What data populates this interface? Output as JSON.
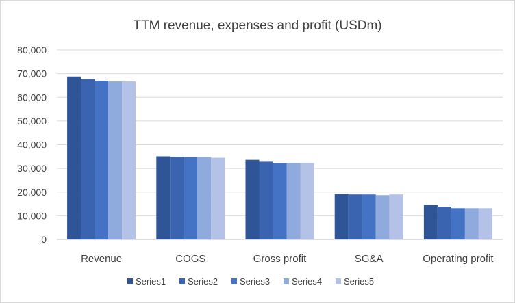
{
  "chart_data": {
    "type": "bar",
    "title": "TTM revenue, expenses and profit (USDm)",
    "xlabel": "",
    "ylabel": "",
    "categories": [
      "Revenue",
      "COGS",
      "Gross profit",
      "SG&A",
      "Operating profit"
    ],
    "series": [
      {
        "name": "Series1",
        "color": "#2f5597",
        "values": [
          68800,
          35100,
          33600,
          19200,
          14600
        ]
      },
      {
        "name": "Series2",
        "color": "#3a64b0",
        "values": [
          67600,
          34900,
          32800,
          19000,
          13800
        ]
      },
      {
        "name": "Series3",
        "color": "#4472c4",
        "values": [
          67000,
          34800,
          32200,
          19000,
          13200
        ]
      },
      {
        "name": "Series4",
        "color": "#8faadc",
        "values": [
          66700,
          34800,
          32200,
          18700,
          13200
        ]
      },
      {
        "name": "Series5",
        "color": "#b4c2e7",
        "values": [
          66700,
          34500,
          32200,
          19000,
          13200
        ]
      }
    ],
    "ylim": [
      0,
      80000
    ],
    "yticks": [
      0,
      10000,
      20000,
      30000,
      40000,
      50000,
      60000,
      70000,
      80000
    ],
    "ytick_labels": [
      "0",
      "10,000",
      "20,000",
      "30,000",
      "40,000",
      "50,000",
      "60,000",
      "70,000",
      "80,000"
    ],
    "grid": true,
    "legend_position": "bottom"
  }
}
